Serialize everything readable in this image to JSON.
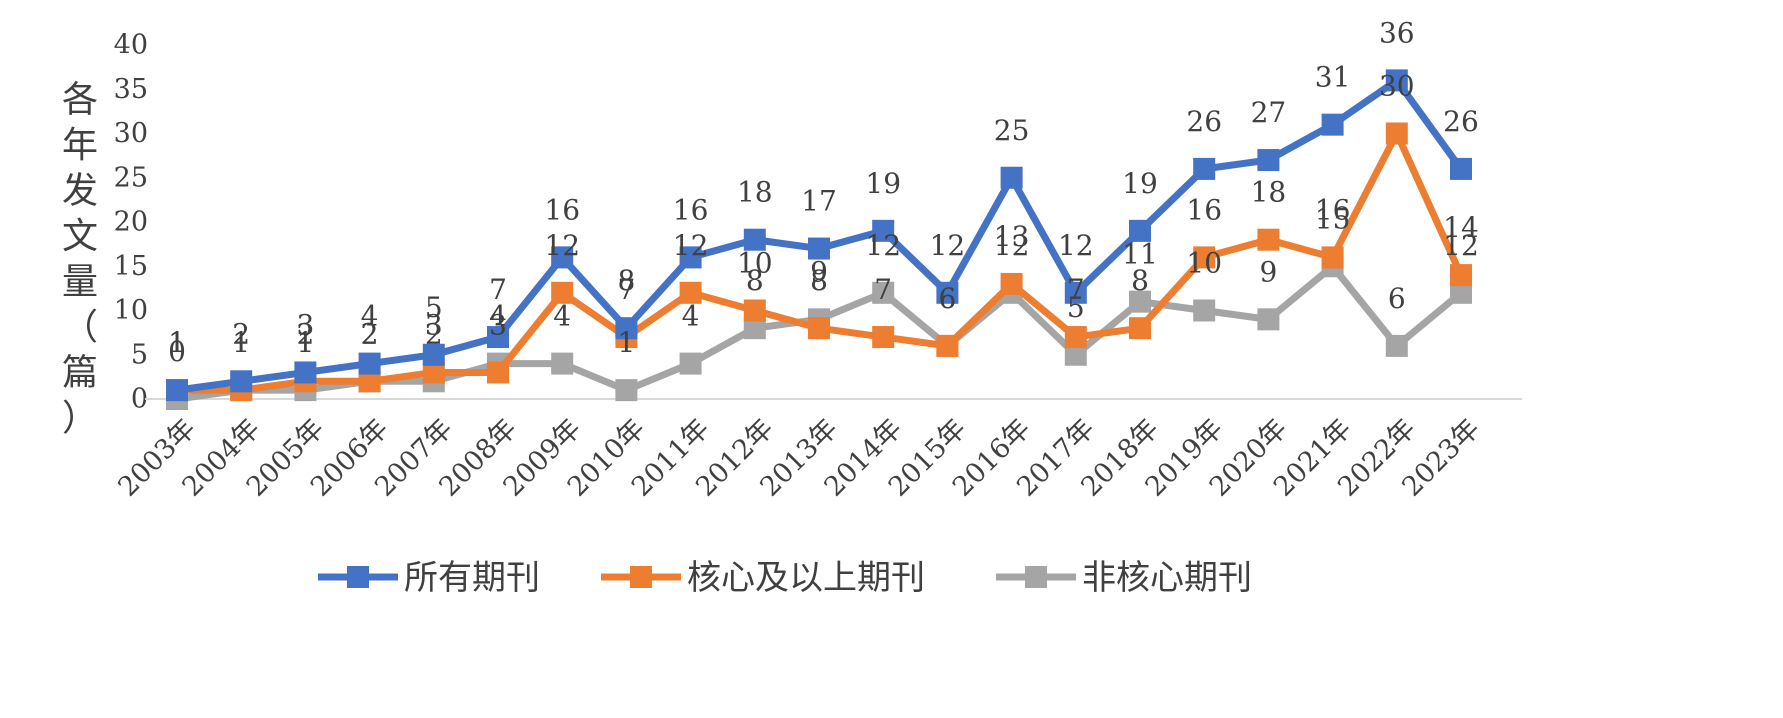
{
  "chart_data": {
    "type": "line",
    "title": "",
    "xlabel": "",
    "ylabel": "各年发文量（篇）",
    "ylim": [
      0,
      40
    ],
    "yticks": [
      "0",
      "5",
      "10",
      "15",
      "20",
      "25",
      "30",
      "35",
      "40"
    ],
    "grid": false,
    "legend_position": "bottom",
    "categories": [
      "2003年",
      "2004年",
      "2005年",
      "2006年",
      "2007年",
      "2008年",
      "2009年",
      "2010年",
      "2011年",
      "2012年",
      "2013年",
      "2014年",
      "2015年",
      "2016年",
      "2017年",
      "2018年",
      "2019年",
      "2020年",
      "2021年",
      "2022年",
      "2023年"
    ],
    "series": [
      {
        "name": "所有期刊",
        "color": "#4472C4",
        "values": [
          1,
          2,
          3,
          4,
          5,
          7,
          16,
          8,
          16,
          18,
          17,
          19,
          12,
          25,
          12,
          19,
          26,
          27,
          31,
          36,
          26
        ]
      },
      {
        "name": "核心及以上期刊",
        "color": "#ED7D31",
        "values": [
          1,
          1,
          2,
          2,
          3,
          3,
          12,
          7,
          12,
          10,
          8,
          7,
          6,
          13,
          7,
          8,
          16,
          18,
          16,
          30,
          14
        ]
      },
      {
        "name": "非核心期刊",
        "color": "#A5A5A5",
        "values": [
          0,
          1,
          1,
          2,
          2,
          4,
          4,
          1,
          4,
          8,
          9,
          12,
          6,
          12,
          5,
          11,
          10,
          9,
          15,
          6,
          12
        ]
      }
    ]
  }
}
